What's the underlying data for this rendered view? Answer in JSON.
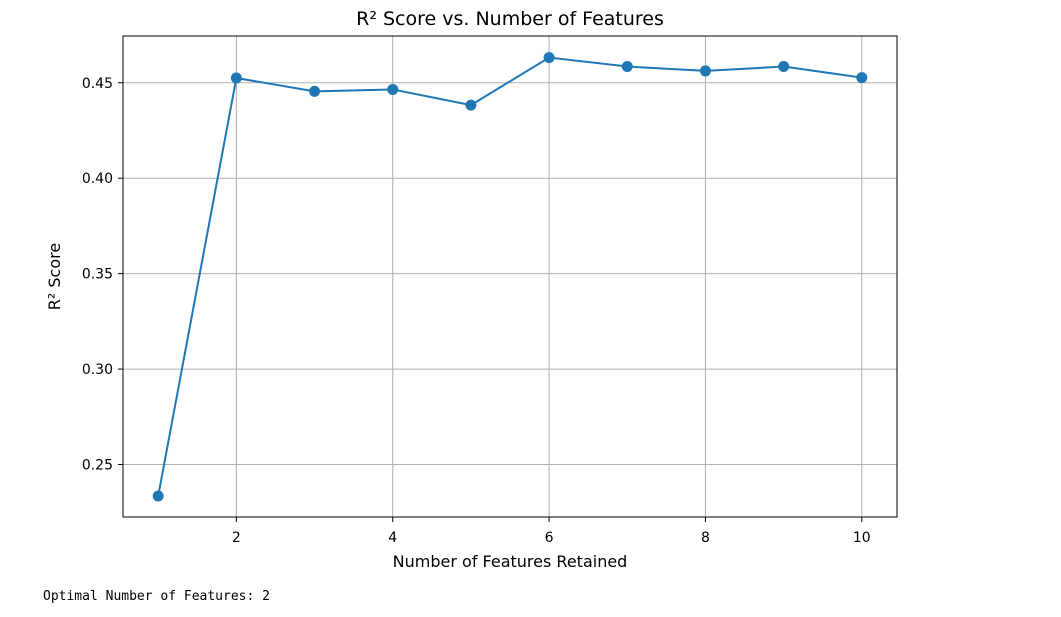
{
  "chart_data": {
    "type": "line",
    "title": "R² Score vs. Number of Features",
    "xlabel": "Number of Features Retained",
    "ylabel": "R² Score",
    "x": [
      1,
      2,
      3,
      4,
      5,
      6,
      7,
      8,
      9,
      10
    ],
    "series": [
      {
        "values": [
          0.2335,
          0.4525,
          0.4455,
          0.4465,
          0.4383,
          0.4632,
          0.4585,
          0.4562,
          0.4585,
          0.4527
        ],
        "color": "#1f77b4",
        "marker": "circle"
      }
    ],
    "xlim": [
      0.55,
      10.45
    ],
    "ylim": [
      0.2225,
      0.4745
    ],
    "xticks": [
      2,
      4,
      6,
      8,
      10
    ],
    "yticks": [
      0.25,
      0.3,
      0.35,
      0.4,
      0.45
    ],
    "xtick_labels": [
      "2",
      "4",
      "6",
      "8",
      "10"
    ],
    "ytick_labels": [
      "0.25",
      "0.30",
      "0.35",
      "0.40",
      "0.45"
    ],
    "grid": true
  },
  "output": {
    "text": "Optimal Number of Features: 2"
  }
}
